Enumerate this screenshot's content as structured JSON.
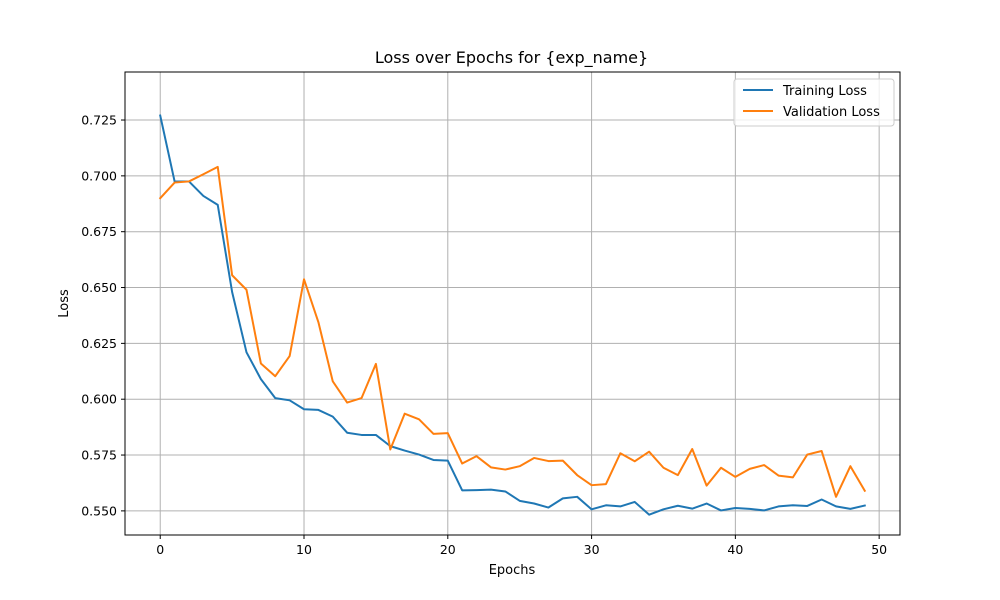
{
  "chart_data": {
    "type": "line",
    "title": "Loss over Epochs for {exp_name}",
    "xlabel": "Epochs",
    "ylabel": "Loss",
    "xlim": [
      -2.45,
      51.45
    ],
    "ylim": [
      0.5392,
      0.7465
    ],
    "xticks": [
      0,
      10,
      20,
      30,
      40,
      50
    ],
    "yticks": [
      0.55,
      0.575,
      0.6,
      0.625,
      0.65,
      0.675,
      0.7,
      0.725
    ],
    "ytick_labels": [
      "0.550",
      "0.575",
      "0.600",
      "0.625",
      "0.650",
      "0.675",
      "0.700",
      "0.725"
    ],
    "grid": true,
    "legend_position": "upper right",
    "x": [
      0,
      1,
      2,
      3,
      4,
      5,
      6,
      7,
      8,
      9,
      10,
      11,
      12,
      13,
      14,
      15,
      16,
      17,
      18,
      19,
      20,
      21,
      22,
      23,
      24,
      25,
      26,
      27,
      28,
      29,
      30,
      31,
      32,
      33,
      34,
      35,
      36,
      37,
      38,
      39,
      40,
      41,
      42,
      43,
      44,
      45,
      46,
      47,
      48,
      49
    ],
    "series": [
      {
        "name": "Training Loss",
        "color": "#1f77b4",
        "values": [
          0.727,
          0.6975,
          0.6975,
          0.691,
          0.687,
          0.648,
          0.621,
          0.609,
          0.6005,
          0.5995,
          0.5955,
          0.5952,
          0.5922,
          0.585,
          0.584,
          0.584,
          0.579,
          0.577,
          0.5752,
          0.5728,
          0.5725,
          0.5592,
          0.5593,
          0.5595,
          0.5587,
          0.5545,
          0.5533,
          0.5515,
          0.5556,
          0.5563,
          0.5507,
          0.5525,
          0.552,
          0.554,
          0.5483,
          0.5507,
          0.5523,
          0.551,
          0.5533,
          0.5502,
          0.5513,
          0.5509,
          0.5502,
          0.552,
          0.5525,
          0.5522,
          0.5551,
          0.552,
          0.5509,
          0.5524
        ]
      },
      {
        "name": "Validation Loss",
        "color": "#ff7f0e",
        "values": [
          0.69,
          0.697,
          0.6975,
          0.7007,
          0.704,
          0.6555,
          0.649,
          0.616,
          0.6103,
          0.6193,
          0.6537,
          0.6345,
          0.608,
          0.5985,
          0.6005,
          0.6158,
          0.5775,
          0.5935,
          0.591,
          0.5845,
          0.5848,
          0.5712,
          0.5745,
          0.5695,
          0.5685,
          0.57,
          0.5737,
          0.5723,
          0.5725,
          0.566,
          0.5615,
          0.562,
          0.5758,
          0.5722,
          0.5765,
          0.5693,
          0.566,
          0.5777,
          0.5613,
          0.5693,
          0.5652,
          0.5688,
          0.5705,
          0.5658,
          0.565,
          0.5752,
          0.5768,
          0.5563,
          0.57,
          0.559
        ]
      }
    ]
  }
}
